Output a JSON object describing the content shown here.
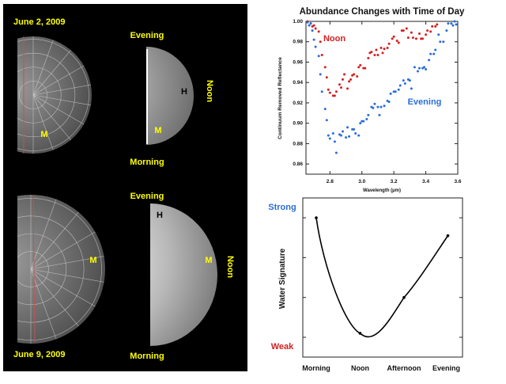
{
  "images": {
    "top": {
      "date": "June 2, 2009",
      "evening": "Evening",
      "morning": "Morning",
      "noon": "Noon",
      "h": "H",
      "m_left": "M",
      "m_right": "M"
    },
    "bottom": {
      "date": "June 9, 2009",
      "evening": "Evening",
      "morning": "Morning",
      "noon": "Noon",
      "h": "H",
      "m_left": "M",
      "m_right": "M"
    },
    "label_color": "#ffff00"
  },
  "chart_data": [
    {
      "type": "scatter",
      "title": "Abundance Changes with Time of Day",
      "xlabel": "Wavelength (µm)",
      "ylabel": "Continuum Removed Reflectance",
      "xlim": [
        2.65,
        3.6
      ],
      "ylim": [
        0.85,
        1.0
      ],
      "xticks": [
        "2.8",
        "3.0",
        "3.2",
        "3.4",
        "3.6"
      ],
      "yticks": [
        "0.86",
        "0.88",
        "0.90",
        "0.92",
        "0.94",
        "0.96",
        "0.98",
        "1.00"
      ],
      "grid": false,
      "series": [
        {
          "name": "Noon",
          "color": "#d42020",
          "x": [
            2.66,
            2.68,
            2.69,
            2.7,
            2.71,
            2.73,
            2.74,
            2.75,
            2.77,
            2.78,
            2.79,
            2.8,
            2.82,
            2.83,
            2.84,
            2.86,
            2.87,
            2.88,
            2.89,
            2.91,
            2.92,
            2.93,
            2.94,
            2.95,
            2.97,
            2.98,
            2.99,
            3.01,
            3.02,
            3.04,
            3.05,
            3.06,
            3.08,
            3.09,
            3.1,
            3.12,
            3.13,
            3.14,
            3.16,
            3.17,
            3.19,
            3.2,
            3.22,
            3.23,
            3.25,
            3.26,
            3.28,
            3.29,
            3.31,
            3.32,
            3.34,
            3.36,
            3.37,
            3.38,
            3.4,
            3.41,
            3.43,
            3.44,
            3.46,
            3.47
          ],
          "y": [
            1.0,
            0.998,
            0.995,
            0.996,
            0.993,
            0.99,
            0.98,
            0.967,
            0.955,
            0.945,
            0.933,
            0.93,
            0.927,
            0.927,
            0.931,
            0.938,
            0.935,
            0.943,
            0.948,
            0.934,
            0.941,
            0.943,
            0.947,
            0.948,
            0.946,
            0.955,
            0.957,
            0.954,
            0.954,
            0.964,
            0.969,
            0.97,
            0.967,
            0.972,
            0.967,
            0.974,
            0.969,
            0.973,
            0.974,
            0.978,
            0.983,
            0.985,
            0.981,
            0.979,
            0.991,
            0.991,
            0.993,
            0.984,
            0.989,
            0.984,
            0.983,
            0.988,
            0.983,
            0.983,
            0.987,
            0.991,
            0.99,
            0.995,
            0.995,
            0.997
          ]
        },
        {
          "name": "Evening",
          "color": "#2a6ed8",
          "x": [
            2.66,
            2.67,
            2.68,
            2.69,
            2.7,
            2.71,
            2.73,
            2.74,
            2.75,
            2.77,
            2.78,
            2.79,
            2.8,
            2.82,
            2.83,
            2.84,
            2.86,
            2.87,
            2.88,
            2.9,
            2.91,
            2.92,
            2.94,
            2.95,
            2.96,
            2.98,
            2.99,
            3.0,
            3.01,
            3.03,
            3.04,
            3.06,
            3.07,
            3.08,
            3.1,
            3.11,
            3.12,
            3.14,
            3.16,
            3.17,
            3.18,
            3.2,
            3.21,
            3.23,
            3.24,
            3.26,
            3.27,
            3.29,
            3.3,
            3.31,
            3.33,
            3.35,
            3.36,
            3.38,
            3.39,
            3.4,
            3.42,
            3.43,
            3.45,
            3.46,
            3.48,
            3.49,
            3.51,
            3.53,
            3.54,
            3.56,
            3.57,
            3.58,
            3.59
          ],
          "y": [
            0.999,
            0.996,
            0.998,
            0.991,
            0.982,
            0.975,
            0.966,
            0.948,
            0.931,
            0.914,
            0.903,
            0.888,
            0.885,
            0.89,
            0.882,
            0.871,
            0.889,
            0.888,
            0.892,
            0.886,
            0.896,
            0.887,
            0.894,
            0.894,
            0.89,
            0.888,
            0.9,
            0.902,
            0.902,
            0.904,
            0.908,
            0.916,
            0.915,
            0.919,
            0.916,
            0.908,
            0.916,
            0.917,
            0.922,
            0.921,
            0.929,
            0.931,
            0.931,
            0.933,
            0.937,
            0.942,
            0.939,
            0.943,
            0.942,
            0.934,
            0.955,
            0.951,
            0.954,
            0.954,
            0.955,
            0.953,
            0.962,
            0.968,
            0.968,
            0.972,
            0.987,
            0.98,
            0.98,
            0.991,
            0.998,
            0.998,
            0.996,
            1.0,
            0.997
          ]
        }
      ],
      "annotations": [
        {
          "text": "Noon",
          "color": "#d42020"
        },
        {
          "text": "Evening",
          "color": "#2a6ed8"
        }
      ]
    },
    {
      "type": "line",
      "title": "",
      "xlabel": "",
      "ylabel": "Water Signature",
      "categories": [
        "Morning",
        "Noon",
        "Afternoon",
        "Evening"
      ],
      "values": [
        3.0,
        0.1,
        1.0,
        2.55
      ],
      "ylim": [
        -0.5,
        3.5
      ],
      "y_scale_labels": {
        "strong": "Strong",
        "weak": "Weak",
        "strong_color": "#2a6ed8",
        "weak_color": "#d42020"
      },
      "grid": false
    }
  ]
}
